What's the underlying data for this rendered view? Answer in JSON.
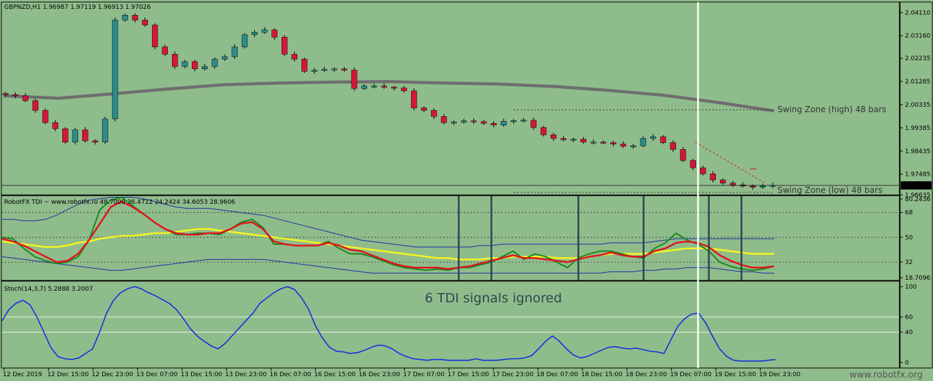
{
  "chart_data": {
    "type": "line",
    "symbol_header": "GBPNZD,H1  1.96987 1.97119 1.96913 1.97026",
    "price_axis": {
      "ylim": [
        1.96635,
        2.0454
      ],
      "ticks": [
        "2.04110",
        "2.03160",
        "2.02235",
        "2.01285",
        "2.00335",
        "1.99385",
        "1.98435",
        "1.97485",
        "1.96635"
      ],
      "current_price": "1.97026",
      "current_price_value": 1.97026
    },
    "x_labels": [
      "12 Dec 2019",
      "12 Dec 15:00",
      "12 Dec 23:00",
      "13 Dec 07:00",
      "13 Dec 15:00",
      "13 Dec 23:00",
      "16 Dec 07:00",
      "16 Dec 15:00",
      "16 Dec 23:00",
      "17 Dec 07:00",
      "17 Dec 15:00",
      "17 Dec 23:00",
      "18 Dec 07:00",
      "18 Dec 15:00",
      "18 Dec 23:00",
      "19 Dec 07:00",
      "19 Dec 15:00",
      "19 Dec 23:00"
    ],
    "close_prices": [
      2.0075,
      2.007,
      2.005,
      2.001,
      1.996,
      1.9935,
      1.988,
      1.993,
      1.9885,
      1.988,
      1.9975,
      2.038,
      2.04,
      2.038,
      2.036,
      2.027,
      2.024,
      2.019,
      2.021,
      2.018,
      2.019,
      2.022,
      2.023,
      2.027,
      2.032,
      2.033,
      2.034,
      2.031,
      2.024,
      2.022,
      2.017,
      2.0175,
      2.0178,
      2.018,
      2.0175,
      2.01,
      2.011,
      2.011,
      2.0105,
      2.0102,
      2.009,
      2.002,
      2.001,
      1.9985,
      1.996,
      1.9962,
      1.9967,
      1.9964,
      1.9957,
      1.995,
      1.9965,
      1.9968,
      1.997,
      1.994,
      1.991,
      1.9895,
      1.989,
      1.9892,
      1.988,
      1.988,
      1.9878,
      1.9872,
      1.9863,
      1.9865,
      1.9895,
      1.9902,
      1.9878,
      1.985,
      1.9805,
      1.9775,
      1.975,
      1.9725,
      1.9712,
      1.9705,
      1.97,
      1.9695,
      1.97,
      1.9703
    ],
    "ma_close_prices": [
      2.007,
      2.006,
      2.0078,
      2.0098,
      2.0115,
      2.0122,
      2.0126,
      2.0128,
      2.0122,
      2.0118,
      2.0108,
      2.0092,
      2.0072,
      2.0042,
      2.0008
    ],
    "swing_zones": {
      "high_value": 2.0012,
      "low_value": 1.9674,
      "high_label": "Swing Zone (high) 48 bars",
      "low_label": "Swing Zone (low) 48 bars"
    },
    "tdi": {
      "header": "RobotFX TDI ~ www.robotfx.ro 48.7000 36.4712 24.2424 34.6053 28.9606",
      "axis_ticks": [
        "80.2436",
        "68",
        "50",
        "32",
        "18.7096"
      ],
      "ylim": [
        18.7096,
        80.2436
      ],
      "levels": [
        68,
        50,
        32
      ],
      "rsi": [
        50,
        49,
        42,
        36,
        33,
        31,
        32,
        36,
        48,
        70,
        77,
        79,
        73,
        67,
        61,
        56,
        52,
        52,
        53,
        53,
        52,
        56,
        61,
        63,
        57,
        45,
        45,
        44,
        44,
        44,
        47,
        42,
        38,
        38,
        36,
        33,
        30,
        28,
        27,
        26,
        27,
        26,
        28,
        28,
        30,
        32,
        36,
        40,
        34,
        38,
        36,
        32,
        28,
        35,
        38,
        40,
        40,
        38,
        36,
        35,
        42,
        46,
        53,
        48,
        45,
        40,
        32,
        29,
        27,
        26,
        27,
        29
      ],
      "price_line": [
        49,
        47,
        44,
        40,
        36,
        32,
        33,
        38,
        48,
        60,
        72,
        76,
        72,
        67,
        61,
        56,
        53,
        52,
        52,
        53,
        53,
        56,
        60,
        61,
        56,
        47,
        45,
        44,
        44,
        44,
        46,
        44,
        41,
        40,
        37,
        34,
        31,
        29,
        28,
        28,
        28,
        27,
        28,
        29,
        31,
        33,
        35,
        37,
        35,
        35,
        34,
        33,
        32,
        34,
        36,
        37,
        39,
        37,
        36,
        36,
        40,
        42,
        46,
        47,
        46,
        43,
        37,
        33,
        30,
        28,
        28,
        29
      ],
      "signal_line": [
        47,
        46,
        45,
        44,
        43,
        43,
        44,
        46,
        47,
        49,
        50,
        51,
        51,
        52,
        53,
        53,
        54,
        55,
        56,
        56,
        55,
        54,
        53,
        52,
        51,
        50,
        49,
        48,
        47,
        46,
        45,
        44,
        43,
        42,
        41,
        40,
        39,
        38,
        37,
        36,
        35,
        35,
        34,
        34,
        34,
        35,
        35,
        36,
        36,
        36,
        36,
        35,
        35,
        35,
        36,
        37,
        38,
        38,
        38,
        38,
        39,
        40,
        41,
        42,
        42,
        42,
        41,
        40,
        39,
        38,
        38,
        38
      ],
      "upper_band": [
        63,
        63,
        62,
        62,
        63,
        66,
        70,
        74,
        77,
        78,
        79,
        79,
        79,
        78,
        76,
        74,
        72,
        71,
        71,
        71,
        70,
        69,
        68,
        67,
        66,
        64,
        62,
        60,
        58,
        56,
        54,
        52,
        50,
        48,
        47,
        46,
        45,
        44,
        43,
        43,
        43,
        43,
        43,
        43,
        44,
        44,
        45,
        45,
        45,
        45,
        45,
        45,
        45,
        45,
        45,
        45,
        46,
        46,
        46,
        46,
        47,
        48,
        49,
        49,
        49,
        49,
        49,
        49,
        49,
        49,
        49,
        49
      ],
      "lower_band": [
        36,
        35,
        34,
        33,
        32,
        31,
        30,
        29,
        28,
        27,
        26,
        26,
        27,
        28,
        29,
        30,
        31,
        32,
        33,
        34,
        34,
        34,
        34,
        34,
        34,
        33,
        32,
        31,
        30,
        29,
        28,
        27,
        26,
        25,
        24,
        24,
        24,
        24,
        24,
        24,
        24,
        24,
        24,
        24,
        24,
        24,
        24,
        24,
        24,
        24,
        24,
        24,
        24,
        24,
        24,
        24,
        25,
        25,
        25,
        26,
        26,
        27,
        27,
        28,
        28,
        28,
        27,
        26,
        25,
        25,
        24,
        24
      ],
      "ignored_signals_count": 6,
      "signal_marker_bars": [
        42,
        45,
        53,
        59,
        65,
        68
      ]
    },
    "stochastic": {
      "header": "Stoch(14,3,7) 5.2888 3.2007",
      "axis_ticks": [
        "100",
        "60",
        "40",
        "0"
      ],
      "ylim": [
        0,
        100
      ],
      "levels": [
        60,
        40
      ],
      "values": [
        55,
        70,
        78,
        82,
        76,
        60,
        40,
        20,
        8,
        5,
        4,
        6,
        12,
        18,
        40,
        65,
        82,
        92,
        97,
        100,
        97,
        92,
        88,
        83,
        78,
        70,
        58,
        45,
        35,
        28,
        22,
        18,
        25,
        35,
        45,
        55,
        65,
        78,
        85,
        92,
        97,
        100,
        96,
        85,
        70,
        48,
        32,
        20,
        15,
        14,
        12,
        13,
        16,
        20,
        23,
        22,
        18,
        12,
        8,
        5,
        4,
        3,
        4,
        4,
        3,
        3,
        3,
        3,
        5,
        3,
        3,
        3,
        4,
        5,
        5,
        6,
        9,
        18,
        28,
        35,
        28,
        18,
        10,
        6,
        8,
        12,
        16,
        20,
        21,
        19,
        18,
        19,
        17,
        15,
        14,
        12,
        30,
        48,
        58,
        64,
        65,
        52,
        34,
        18,
        8,
        3,
        2,
        2,
        2,
        2,
        3,
        4
      ]
    },
    "vertical_marker_bar": 1019,
    "annotation": "6 TDI signals ignored",
    "watermark": "www.robotfx.org",
    "colors": {
      "background": "#8fbc8b",
      "bull": "#2e8b8b",
      "bear": "#d6163a",
      "ma": "#6e6e6e",
      "rsi": "#1a8a1a",
      "price_line": "#e0141e",
      "signal_line": "#f5f51e",
      "bands": "#1c2aa8",
      "stoch": "#1030e0",
      "marker_lines": "#2b4450"
    }
  }
}
